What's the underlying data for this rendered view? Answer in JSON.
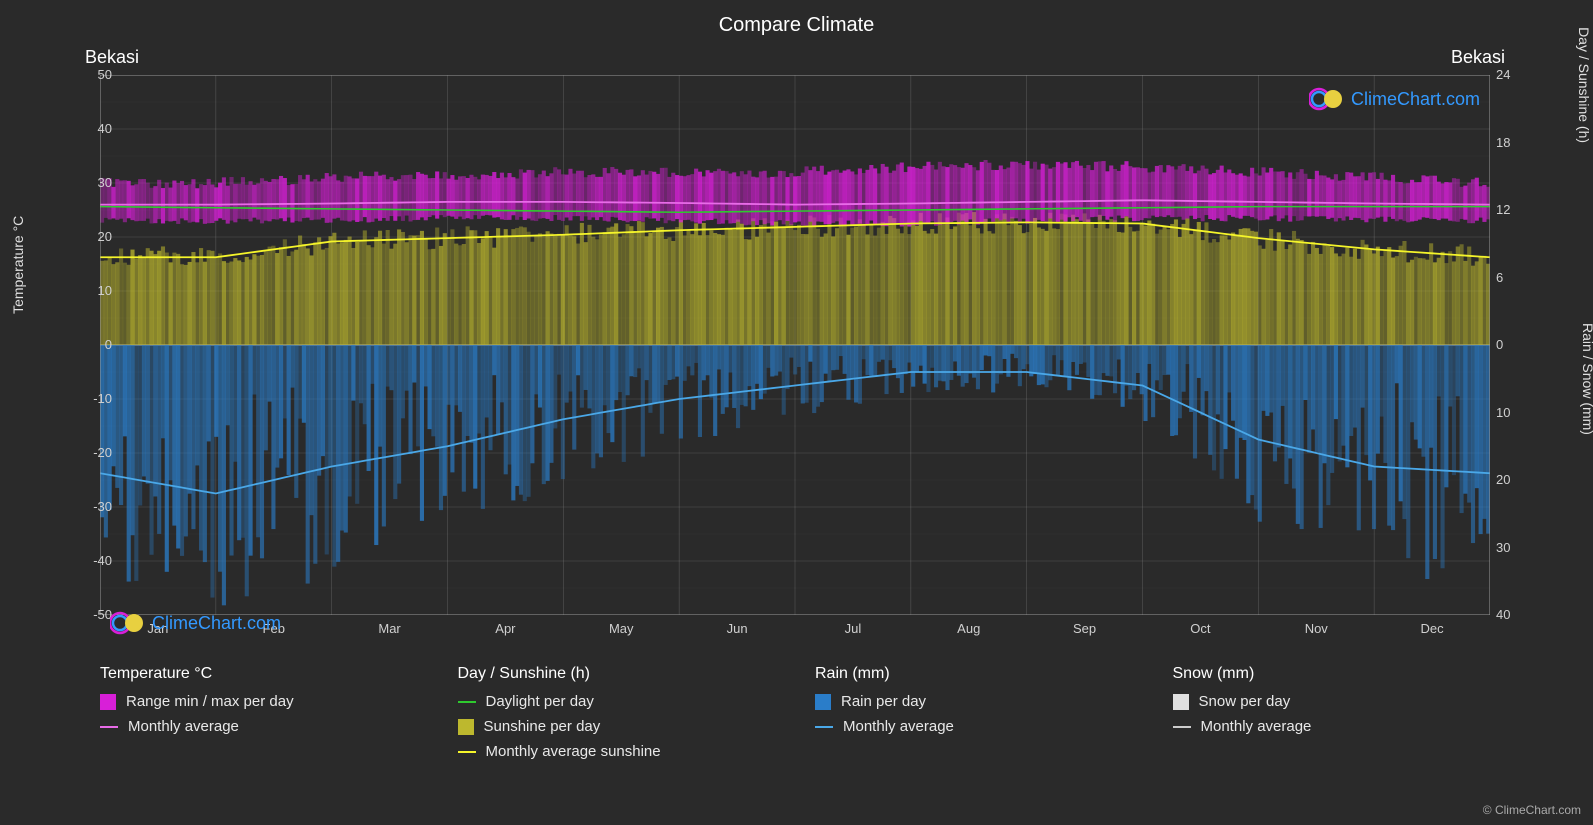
{
  "title": "Compare Climate",
  "location_left": "Bekasi",
  "location_right": "Bekasi",
  "left_axis": {
    "label": "Temperature °C",
    "min": -50,
    "max": 50,
    "ticks": [
      -50,
      -40,
      -30,
      -20,
      -10,
      0,
      10,
      20,
      30,
      40,
      50
    ]
  },
  "right_axis_top": {
    "label": "Day / Sunshine (h)",
    "min": 0,
    "max": 24,
    "ticks": [
      0,
      6,
      12,
      18,
      24
    ]
  },
  "right_axis_bottom": {
    "label": "Rain / Snow (mm)",
    "min": 0,
    "max": 40,
    "ticks": [
      0,
      10,
      20,
      30,
      40
    ]
  },
  "months": [
    "Jan",
    "Feb",
    "Mar",
    "Apr",
    "May",
    "Jun",
    "Jul",
    "Aug",
    "Sep",
    "Oct",
    "Nov",
    "Dec"
  ],
  "colors": {
    "bg": "#2a2a2a",
    "grid": "#888888",
    "grid_minor": "#555555",
    "temp_range": "#d81fd8",
    "temp_avg": "#e86be8",
    "daylight": "#2ec92e",
    "sunshine_bars": "#bdb82e",
    "sunshine_line": "#f5f52a",
    "rain_bars": "#2a7dc9",
    "rain_line": "#4aa8e8",
    "snow_bars": "#e0e0e0",
    "snow_line": "#cccccc",
    "logo_text": "#3399ff",
    "logo_c_outer": "#d81fd8",
    "logo_c_inner": "#3399ff",
    "logo_sun": "#e8d040"
  },
  "series": {
    "temp_avg": [
      26,
      26,
      26.2,
      26.5,
      26.5,
      26.3,
      26,
      26.2,
      26.5,
      26.8,
      26.5,
      26.2
    ],
    "temp_min": [
      23,
      23,
      23.2,
      23.5,
      23.5,
      23,
      22.5,
      22.5,
      23,
      23.5,
      23.5,
      23.2
    ],
    "temp_max": [
      30,
      30,
      31,
      31.5,
      32,
      32,
      32,
      33,
      33.5,
      33,
      32,
      31
    ],
    "daylight": [
      12.3,
      12.2,
      12.1,
      12.0,
      11.9,
      11.8,
      11.9,
      12.0,
      12.1,
      12.2,
      12.3,
      12.3
    ],
    "sunshine": [
      7.8,
      7.8,
      9.2,
      9.5,
      9.8,
      10.2,
      10.5,
      10.8,
      10.9,
      10.8,
      9.5,
      8.5
    ],
    "rain": [
      19,
      22,
      18,
      15,
      11,
      8,
      6,
      4,
      4,
      6,
      14,
      18
    ]
  },
  "legend": {
    "temp": {
      "title": "Temperature °C",
      "items": [
        {
          "type": "box",
          "color": "#d81fd8",
          "label": "Range min / max per day"
        },
        {
          "type": "line",
          "color": "#e86be8",
          "label": "Monthly average"
        }
      ]
    },
    "day": {
      "title": "Day / Sunshine (h)",
      "items": [
        {
          "type": "line",
          "color": "#2ec92e",
          "label": "Daylight per day"
        },
        {
          "type": "box",
          "color": "#bdb82e",
          "label": "Sunshine per day"
        },
        {
          "type": "line",
          "color": "#f5f52a",
          "label": "Monthly average sunshine"
        }
      ]
    },
    "rain": {
      "title": "Rain (mm)",
      "items": [
        {
          "type": "box",
          "color": "#2a7dc9",
          "label": "Rain per day"
        },
        {
          "type": "line",
          "color": "#4aa8e8",
          "label": "Monthly average"
        }
      ]
    },
    "snow": {
      "title": "Snow (mm)",
      "items": [
        {
          "type": "box",
          "color": "#e0e0e0",
          "label": "Snow per day"
        },
        {
          "type": "line",
          "color": "#cccccc",
          "label": "Monthly average"
        }
      ]
    }
  },
  "watermark": "ClimeChart.com",
  "copyright": "© ClimeChart.com"
}
